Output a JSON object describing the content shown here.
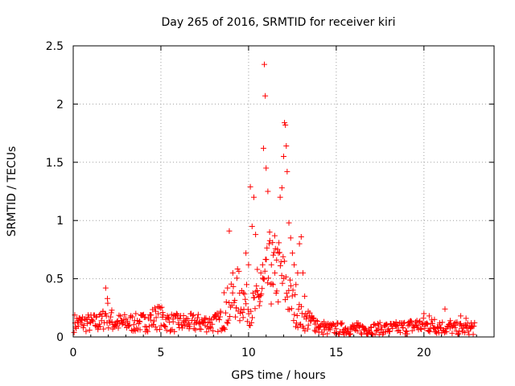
{
  "chart_data": {
    "type": "scatter",
    "title": "Day 265 of 2016, SRMTID for receiver kiri",
    "xlabel": "GPS time / hours",
    "ylabel": "SRMTID / TECUs",
    "xlim": [
      0,
      24
    ],
    "ylim": [
      0,
      2.5
    ],
    "x_ticks": [
      0,
      5,
      10,
      15,
      20
    ],
    "x_tick_labels": [
      "0",
      "5",
      "10",
      "15",
      "20"
    ],
    "y_ticks": [
      0,
      0.5,
      1,
      1.5,
      2,
      2.5
    ],
    "y_tick_labels": [
      "0",
      "0.5",
      "1",
      "1.5",
      "2",
      "2.5"
    ],
    "grid": true,
    "marker": "+",
    "color": "#ff0000",
    "baseline_value": 0.12,
    "series": [
      {
        "name": "SRMTID",
        "x": [
          0.1,
          0.3,
          0.5,
          0.8,
          1.0,
          1.3,
          1.5,
          1.7,
          1.85,
          1.95,
          2.2,
          2.5,
          2.8,
          3.1,
          3.5,
          3.8,
          4.1,
          4.4,
          4.7,
          4.9,
          5.1,
          5.4,
          5.7,
          6.0,
          6.3,
          6.6,
          6.9,
          7.2,
          7.5,
          7.8,
          8.1,
          8.4,
          8.6,
          8.8,
          8.9,
          9.1,
          9.3,
          9.5,
          9.7,
          9.85,
          10.0,
          10.1,
          10.2,
          10.3,
          10.4,
          10.5,
          10.6,
          10.7,
          10.8,
          10.85,
          10.9,
          10.95,
          11.0,
          11.1,
          11.2,
          11.3,
          11.4,
          11.5,
          11.6,
          11.7,
          11.8,
          11.9,
          12.0,
          12.05,
          12.1,
          12.15,
          12.2,
          12.3,
          12.4,
          12.5,
          12.6,
          12.7,
          12.8,
          12.9,
          13.0,
          13.1,
          13.2,
          13.4,
          13.6,
          13.8,
          14.0,
          14.3,
          14.6,
          15.0,
          15.4,
          15.8,
          16.2,
          16.6,
          17.0,
          17.4,
          17.8,
          18.1,
          18.4,
          18.8,
          19.2,
          19.6,
          20.0,
          20.3,
          20.6,
          20.9,
          21.2,
          21.5,
          21.8,
          22.1,
          22.4,
          22.7
        ],
        "y": [
          0.12,
          0.14,
          0.11,
          0.15,
          0.13,
          0.17,
          0.19,
          0.22,
          0.42,
          0.33,
          0.23,
          0.13,
          0.11,
          0.12,
          0.14,
          0.13,
          0.17,
          0.19,
          0.22,
          0.26,
          0.21,
          0.16,
          0.13,
          0.12,
          0.14,
          0.12,
          0.11,
          0.13,
          0.15,
          0.12,
          0.18,
          0.22,
          0.38,
          0.42,
          0.91,
          0.55,
          0.25,
          0.14,
          0.38,
          0.72,
          0.62,
          1.29,
          0.95,
          1.2,
          0.88,
          0.58,
          0.35,
          0.55,
          0.62,
          1.62,
          2.34,
          2.07,
          1.45,
          1.25,
          0.9,
          0.62,
          0.45,
          0.55,
          0.66,
          0.72,
          1.2,
          1.28,
          1.55,
          1.84,
          1.82,
          1.64,
          1.42,
          0.98,
          0.85,
          0.72,
          0.62,
          0.45,
          0.55,
          0.8,
          0.86,
          0.55,
          0.35,
          0.22,
          0.18,
          0.11,
          0.09,
          0.13,
          0.08,
          0.07,
          0.06,
          0.07,
          0.05,
          0.06,
          0.08,
          0.07,
          0.1,
          0.11,
          0.09,
          0.08,
          0.12,
          0.14,
          0.2,
          0.18,
          0.15,
          0.12,
          0.24,
          0.14,
          0.1,
          0.18,
          0.16,
          0.12
        ]
      }
    ]
  }
}
